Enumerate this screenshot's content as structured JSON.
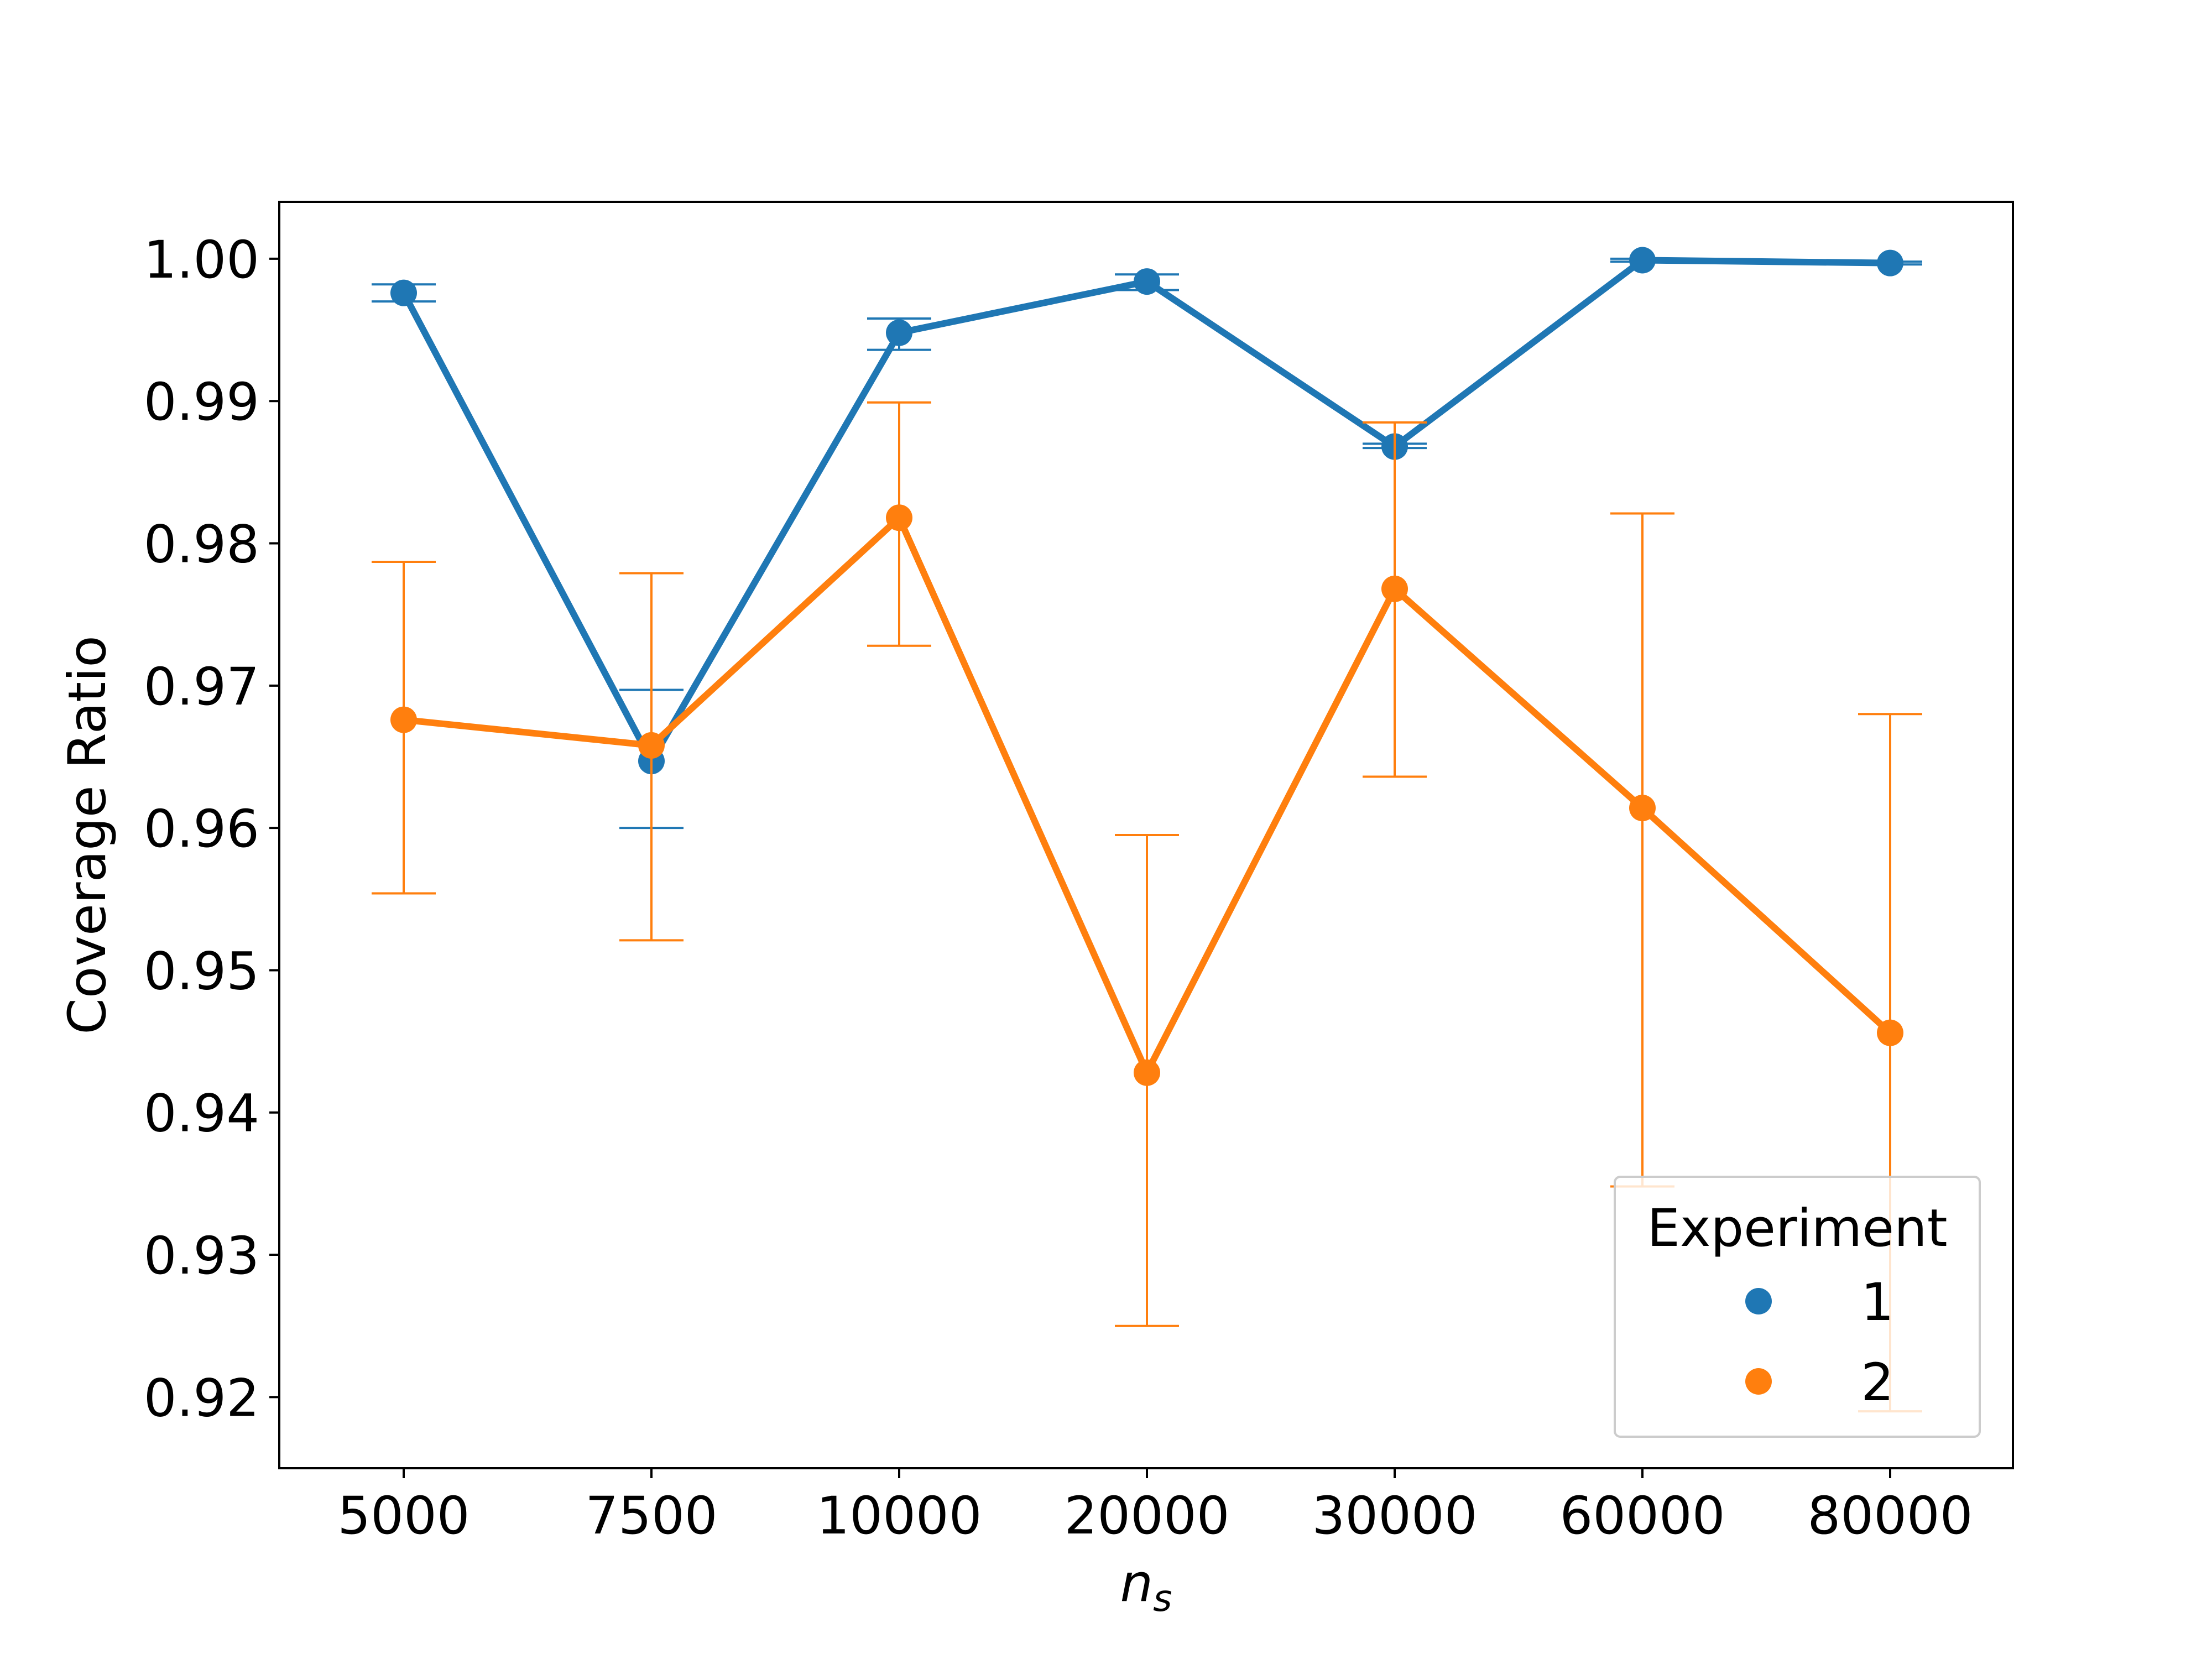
{
  "chart_data": {
    "type": "line",
    "title": "",
    "xlabel_main": "n",
    "xlabel_sub": "s",
    "ylabel": "Coverage Ratio",
    "categories": [
      "5000",
      "7500",
      "10000",
      "20000",
      "30000",
      "60000",
      "80000"
    ],
    "ylim": [
      0.915,
      1.004
    ],
    "yticks": [
      0.92,
      0.93,
      0.94,
      0.95,
      0.96,
      0.97,
      0.98,
      0.99,
      1.0
    ],
    "ytick_labels": [
      "0.92",
      "0.93",
      "0.94",
      "0.95",
      "0.96",
      "0.97",
      "0.98",
      "0.99",
      "1.00"
    ],
    "grid": false,
    "legend": {
      "title": "Experiment",
      "position": "bottom-right"
    },
    "series": [
      {
        "name": "1",
        "color": "#1f77b4",
        "values": [
          0.9976,
          0.9647,
          0.9948,
          0.9984,
          0.9868,
          0.9999,
          0.9997
        ],
        "err_low": [
          0.997,
          0.96,
          0.9936,
          0.9978,
          0.9867,
          0.9998,
          0.9996
        ],
        "err_high": [
          0.9982,
          0.9697,
          0.9958,
          0.9989,
          0.987,
          1.0,
          0.9998
        ]
      },
      {
        "name": "2",
        "color": "#ff7f0e",
        "values": [
          0.9676,
          0.9658,
          0.9818,
          0.9428,
          0.9768,
          0.9614,
          0.9456
        ],
        "err_low": [
          0.9554,
          0.9521,
          0.9728,
          0.925,
          0.9636,
          0.9348,
          0.919
        ],
        "err_high": [
          0.9787,
          0.9779,
          0.9899,
          0.9595,
          0.9885,
          0.9821,
          0.968
        ]
      }
    ]
  }
}
